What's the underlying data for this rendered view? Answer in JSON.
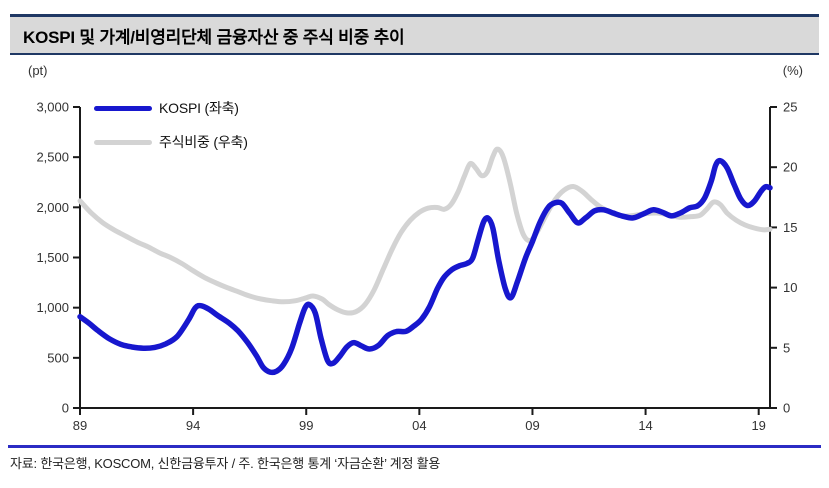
{
  "title": "KOSPI 및 가계/비영리단체 금융자산 중 주식 비중 추이",
  "units": {
    "left": "(pt)",
    "right": "(%)"
  },
  "source_note": "자료: 한국은행, KOSCOM, 신한금융투자 / 주. 한국은행 통계 ‘자금순환’ 계정 활용",
  "colors": {
    "kospi_line": "#1717ce",
    "share_line": "#d3d3d3",
    "title_border": "#1f3864",
    "title_bg": "#d9d9d9",
    "bottom_rule": "#2b2bc4",
    "axis": "#1a1a1a",
    "tick_text": "#333333"
  },
  "chart_data": {
    "type": "line",
    "title": "KOSPI 및 가계/비영리단체 금융자산 중 주식 비중 추이",
    "x_range": [
      1989,
      2019.5
    ],
    "x_tick_years": [
      1989,
      1994,
      1999,
      2004,
      2009,
      2014,
      2019
    ],
    "x_tick_labels": [
      "89",
      "94",
      "99",
      "04",
      "09",
      "14",
      "19"
    ],
    "grid": false,
    "legend_position": "top-left",
    "left_axis": {
      "label": "(pt)",
      "range": [
        0,
        3000
      ],
      "tick_values": [
        0,
        500,
        1000,
        1500,
        2000,
        2500,
        3000
      ],
      "tick_labels": [
        "0",
        "500",
        "1,000",
        "1,500",
        "2,000",
        "2,500",
        "3,000"
      ]
    },
    "right_axis": {
      "label": "(%)",
      "range": [
        0,
        25
      ],
      "tick_values": [
        0,
        5,
        10,
        15,
        20,
        25
      ],
      "tick_labels": [
        "0",
        "5",
        "10",
        "15",
        "20",
        "25"
      ]
    },
    "series": [
      {
        "name": "KOSPI (좌축)",
        "axis": "left",
        "color": "#1717ce",
        "stroke_width": 5.5,
        "points": [
          [
            1989.0,
            910
          ],
          [
            1989.4,
            845
          ],
          [
            1989.8,
            770
          ],
          [
            1990.3,
            690
          ],
          [
            1990.8,
            635
          ],
          [
            1991.3,
            608
          ],
          [
            1991.8,
            596
          ],
          [
            1992.3,
            604
          ],
          [
            1992.8,
            640
          ],
          [
            1993.3,
            715
          ],
          [
            1993.8,
            880
          ],
          [
            1994.1,
            1000
          ],
          [
            1994.35,
            1020
          ],
          [
            1994.7,
            985
          ],
          [
            1995.1,
            920
          ],
          [
            1995.6,
            845
          ],
          [
            1996.0,
            765
          ],
          [
            1996.4,
            655
          ],
          [
            1996.8,
            520
          ],
          [
            1997.1,
            405
          ],
          [
            1997.4,
            358
          ],
          [
            1997.7,
            368
          ],
          [
            1998.0,
            435
          ],
          [
            1998.35,
            590
          ],
          [
            1998.7,
            840
          ],
          [
            1998.95,
            1000
          ],
          [
            1999.15,
            1030
          ],
          [
            1999.4,
            945
          ],
          [
            1999.65,
            700
          ],
          [
            1999.95,
            470
          ],
          [
            2000.2,
            448
          ],
          [
            2000.5,
            520
          ],
          [
            2000.8,
            610
          ],
          [
            2001.1,
            652
          ],
          [
            2001.45,
            618
          ],
          [
            2001.8,
            588
          ],
          [
            2002.2,
            625
          ],
          [
            2002.6,
            722
          ],
          [
            2003.0,
            762
          ],
          [
            2003.4,
            763
          ],
          [
            2003.75,
            815
          ],
          [
            2004.1,
            885
          ],
          [
            2004.45,
            1010
          ],
          [
            2004.8,
            1190
          ],
          [
            2005.1,
            1305
          ],
          [
            2005.45,
            1380
          ],
          [
            2005.8,
            1420
          ],
          [
            2006.1,
            1440
          ],
          [
            2006.35,
            1490
          ],
          [
            2006.6,
            1680
          ],
          [
            2006.85,
            1860
          ],
          [
            2007.05,
            1890
          ],
          [
            2007.25,
            1790
          ],
          [
            2007.5,
            1480
          ],
          [
            2007.8,
            1190
          ],
          [
            2008.05,
            1100
          ],
          [
            2008.35,
            1270
          ],
          [
            2008.7,
            1500
          ],
          [
            2009.0,
            1660
          ],
          [
            2009.35,
            1860
          ],
          [
            2009.7,
            2000
          ],
          [
            2010.0,
            2045
          ],
          [
            2010.3,
            2040
          ],
          [
            2010.65,
            1940
          ],
          [
            2011.0,
            1845
          ],
          [
            2011.35,
            1895
          ],
          [
            2011.75,
            1965
          ],
          [
            2012.15,
            1975
          ],
          [
            2012.55,
            1945
          ],
          [
            2012.95,
            1915
          ],
          [
            2013.45,
            1895
          ],
          [
            2013.95,
            1940
          ],
          [
            2014.35,
            1975
          ],
          [
            2014.75,
            1950
          ],
          [
            2015.15,
            1915
          ],
          [
            2015.55,
            1945
          ],
          [
            2015.95,
            1995
          ],
          [
            2016.3,
            2015
          ],
          [
            2016.6,
            2090
          ],
          [
            2016.9,
            2260
          ],
          [
            2017.1,
            2420
          ],
          [
            2017.3,
            2465
          ],
          [
            2017.6,
            2395
          ],
          [
            2017.9,
            2235
          ],
          [
            2018.2,
            2085
          ],
          [
            2018.5,
            2018
          ],
          [
            2018.8,
            2060
          ],
          [
            2019.1,
            2160
          ],
          [
            2019.3,
            2205
          ],
          [
            2019.5,
            2195
          ]
        ]
      },
      {
        "name": "주식비중 (우축)",
        "axis": "right",
        "color": "#d3d3d3",
        "stroke_width": 5,
        "points": [
          [
            1989.0,
            17.2
          ],
          [
            1989.5,
            16.2
          ],
          [
            1990.0,
            15.4
          ],
          [
            1990.5,
            14.8
          ],
          [
            1991.0,
            14.3
          ],
          [
            1991.5,
            13.8
          ],
          [
            1992.0,
            13.4
          ],
          [
            1992.5,
            12.9
          ],
          [
            1993.0,
            12.5
          ],
          [
            1993.5,
            12.0
          ],
          [
            1994.0,
            11.4
          ],
          [
            1994.5,
            10.85
          ],
          [
            1995.0,
            10.4
          ],
          [
            1995.5,
            10.0
          ],
          [
            1996.0,
            9.65
          ],
          [
            1996.5,
            9.3
          ],
          [
            1997.0,
            9.05
          ],
          [
            1997.5,
            8.9
          ],
          [
            1998.0,
            8.82
          ],
          [
            1998.5,
            8.9
          ],
          [
            1999.0,
            9.15
          ],
          [
            1999.3,
            9.3
          ],
          [
            1999.7,
            9.05
          ],
          [
            2000.0,
            8.6
          ],
          [
            2000.4,
            8.15
          ],
          [
            2000.8,
            7.9
          ],
          [
            2001.2,
            8.0
          ],
          [
            2001.6,
            8.6
          ],
          [
            2002.0,
            9.8
          ],
          [
            2002.4,
            11.5
          ],
          [
            2002.8,
            13.2
          ],
          [
            2003.2,
            14.6
          ],
          [
            2003.6,
            15.6
          ],
          [
            2004.0,
            16.25
          ],
          [
            2004.4,
            16.6
          ],
          [
            2004.8,
            16.65
          ],
          [
            2005.1,
            16.5
          ],
          [
            2005.4,
            16.9
          ],
          [
            2005.7,
            17.9
          ],
          [
            2006.0,
            19.3
          ],
          [
            2006.25,
            20.3
          ],
          [
            2006.5,
            19.9
          ],
          [
            2006.75,
            19.3
          ],
          [
            2007.0,
            19.6
          ],
          [
            2007.25,
            20.9
          ],
          [
            2007.45,
            21.5
          ],
          [
            2007.7,
            20.9
          ],
          [
            2008.0,
            18.8
          ],
          [
            2008.3,
            16.2
          ],
          [
            2008.6,
            14.4
          ],
          [
            2008.9,
            13.9
          ],
          [
            2009.2,
            14.6
          ],
          [
            2009.6,
            16.0
          ],
          [
            2010.0,
            17.3
          ],
          [
            2010.4,
            18.1
          ],
          [
            2010.8,
            18.4
          ],
          [
            2011.2,
            18.0
          ],
          [
            2011.6,
            17.3
          ],
          [
            2012.0,
            16.7
          ],
          [
            2012.5,
            16.2
          ],
          [
            2013.0,
            15.95
          ],
          [
            2013.5,
            16.0
          ],
          [
            2014.0,
            16.15
          ],
          [
            2014.5,
            16.2
          ],
          [
            2015.0,
            16.05
          ],
          [
            2015.5,
            15.85
          ],
          [
            2016.0,
            15.9
          ],
          [
            2016.4,
            16.0
          ],
          [
            2016.7,
            16.5
          ],
          [
            2017.0,
            17.1
          ],
          [
            2017.3,
            16.9
          ],
          [
            2017.6,
            16.2
          ],
          [
            2018.0,
            15.6
          ],
          [
            2018.4,
            15.2
          ],
          [
            2018.8,
            14.95
          ],
          [
            2019.2,
            14.8
          ],
          [
            2019.5,
            14.85
          ]
        ]
      }
    ]
  }
}
